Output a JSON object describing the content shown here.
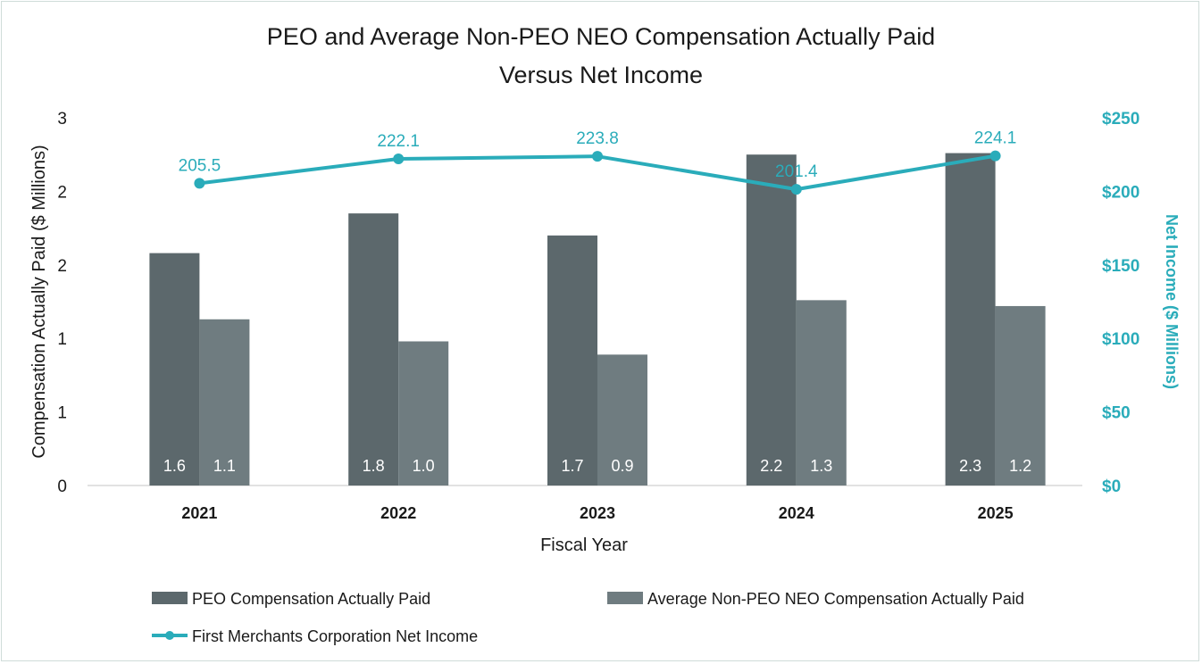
{
  "chart_data": {
    "type": "bar",
    "title_lines": [
      "PEO and Average Non-PEO NEO Compensation Actually Paid",
      "Versus Net Income"
    ],
    "xlabel": "Fiscal Year",
    "ylabel": "Compensation Actually Paid ($ Millions)",
    "y2label": "Net Income ($ Millions)",
    "categories": [
      "2021",
      "2022",
      "2023",
      "2024",
      "2025"
    ],
    "ylim": [
      0,
      2.5
    ],
    "y_ticks": [
      {
        "value": 0,
        "label": "0"
      },
      {
        "value": 0.5,
        "label": "1"
      },
      {
        "value": 1.0,
        "label": "1"
      },
      {
        "value": 1.5,
        "label": "2"
      },
      {
        "value": 2.0,
        "label": "2"
      },
      {
        "value": 2.5,
        "label": "3"
      }
    ],
    "y2lim": [
      0,
      250
    ],
    "y2_ticks": [
      {
        "value": 0,
        "label": "$0"
      },
      {
        "value": 50,
        "label": "$50"
      },
      {
        "value": 100,
        "label": "$100"
      },
      {
        "value": 150,
        "label": "$150"
      },
      {
        "value": 200,
        "label": "$200"
      },
      {
        "value": 250,
        "label": "$250"
      }
    ],
    "grid": false,
    "legend_position": "bottom",
    "series": [
      {
        "name": "PEO Compensation Actually Paid",
        "kind": "bar",
        "axis": "left",
        "color": "#5c686c",
        "values": [
          1.58,
          1.85,
          1.7,
          2.25,
          2.26
        ],
        "labels": [
          "1.6",
          "1.8",
          "1.7",
          "2.2",
          "2.3"
        ]
      },
      {
        "name": "Average Non-PEO NEO Compensation Actually Paid",
        "kind": "bar",
        "axis": "left",
        "color": "#6f7c80",
        "values": [
          1.13,
          0.98,
          0.89,
          1.26,
          1.22
        ],
        "labels": [
          "1.1",
          "1.0",
          "0.9",
          "1.3",
          "1.2"
        ]
      },
      {
        "name": "First Merchants Corporation Net Income",
        "kind": "line",
        "axis": "right",
        "color": "#2aacba",
        "values": [
          205.5,
          222.1,
          223.8,
          201.4,
          224.1
        ],
        "labels": [
          "205.5",
          "222.1",
          "223.8",
          "201.4",
          "224.1"
        ]
      }
    ]
  }
}
